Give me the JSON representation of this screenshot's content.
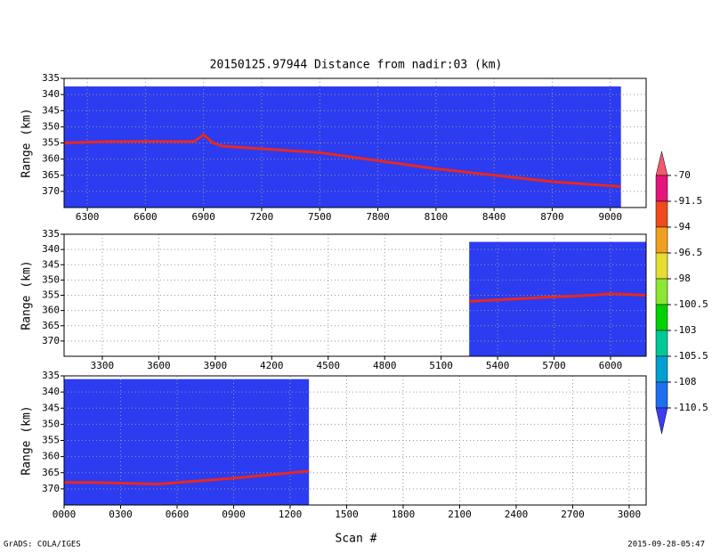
{
  "chart_data": [
    {
      "type": "line",
      "title": "20150125.97944    Distance from nadir:03 (km)",
      "ylabel": "Range (km)",
      "xlim": [
        6180,
        9185
      ],
      "ylim": [
        375,
        335
      ],
      "xticks": [
        6300,
        6600,
        6900,
        7200,
        7500,
        7800,
        8100,
        8400,
        8700,
        9000
      ],
      "yticks": [
        335,
        340,
        345,
        350,
        355,
        360,
        365,
        370
      ],
      "grid": true,
      "extent": {
        "x": [
          6180,
          9055
        ],
        "top": 337.5,
        "color": "#2c3cf0"
      },
      "color": "#e8281e",
      "x": [
        6180,
        6400,
        6600,
        6850,
        6900,
        6950,
        7000,
        7500,
        8100,
        8700,
        9055
      ],
      "values": [
        355,
        354.6,
        354.5,
        354.6,
        352.5,
        355,
        356,
        358,
        363,
        367,
        368.5
      ]
    },
    {
      "type": "line",
      "ylabel": "Range (km)",
      "xlim": [
        3097,
        6189
      ],
      "ylim": [
        375,
        335
      ],
      "xticks": [
        3300,
        3600,
        3900,
        4200,
        4500,
        4800,
        5100,
        5400,
        5700,
        6000
      ],
      "yticks": [
        335,
        340,
        345,
        350,
        355,
        360,
        365,
        370
      ],
      "grid": true,
      "extent": {
        "x": [
          5249,
          6189
        ],
        "top": 337.5,
        "color": "#2c3cf0"
      },
      "color": "#e8281e",
      "x": [
        5249,
        5500,
        5700,
        5900,
        6000,
        6189
      ],
      "values": [
        357,
        356.2,
        355.5,
        355,
        354.5,
        355
      ]
    },
    {
      "type": "line",
      "ylabel": "Range (km)",
      "xlabel": "Scan #",
      "xlim": [
        0,
        3090
      ],
      "ylim": [
        375,
        335
      ],
      "xticks": [
        {
          "value": 0,
          "label": "0000"
        },
        {
          "value": 300,
          "label": "0300"
        },
        {
          "value": 600,
          "label": "0600"
        },
        {
          "value": 900,
          "label": "0900"
        },
        1200,
        1500,
        1800,
        2100,
        2400,
        2700,
        3000
      ],
      "yticks": [
        335,
        340,
        345,
        350,
        355,
        360,
        365,
        370
      ],
      "grid": true,
      "extent": {
        "x": [
          0,
          1300
        ],
        "top": 336,
        "color": "#2c3cf0"
      },
      "color": "#e8281e",
      "x": [
        0,
        150,
        500,
        900,
        1300
      ],
      "values": [
        368,
        368,
        368.5,
        366.7,
        364.5
      ]
    }
  ],
  "colorbar": {
    "ticks": [
      -70,
      -91.5,
      -94,
      -96.5,
      -98,
      -100.5,
      -103,
      -105.5,
      -108,
      -110.5
    ],
    "colors": [
      "#f05a6e",
      "#e6147c",
      "#f04a1e",
      "#f0a01e",
      "#e6dc32",
      "#8ce632",
      "#00d200",
      "#00c896",
      "#00a0d2",
      "#1e6ef0",
      "#3c3cf0"
    ]
  },
  "footer": {
    "left": "GrADS: COLA/IGES",
    "right": "2015-09-28-05:47"
  }
}
